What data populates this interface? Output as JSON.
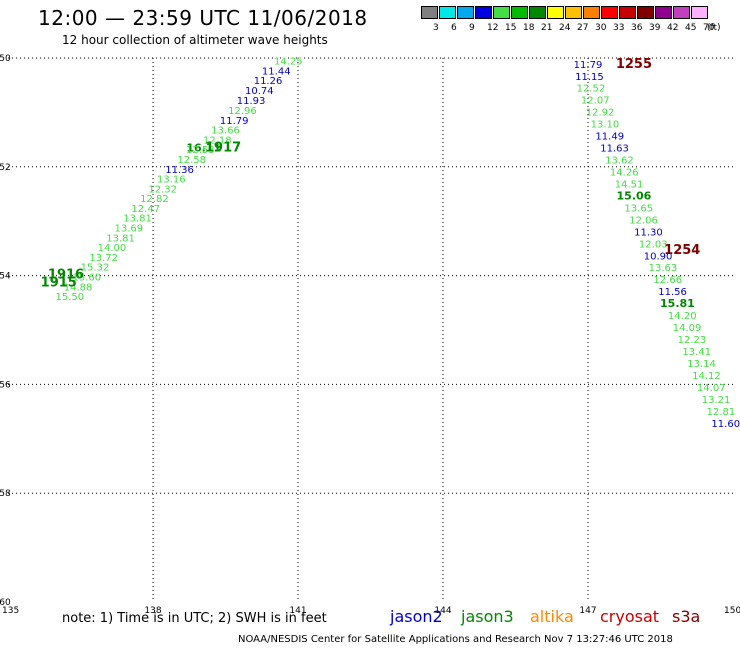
{
  "header": {
    "title": "12:00 — 23:59 UTC 11/06/2018",
    "subtitle": "12 hour collection of altimeter wave heights"
  },
  "colorbar": {
    "unit": "(ft)",
    "bins": [
      {
        "label": "3",
        "color": "#808080"
      },
      {
        "label": "6",
        "color": "#00e8e8"
      },
      {
        "label": "9",
        "color": "#00a8f0"
      },
      {
        "label": "12",
        "color": "#0000e0"
      },
      {
        "label": "15",
        "color": "#44dd44"
      },
      {
        "label": "18",
        "color": "#00bb00"
      },
      {
        "label": "21",
        "color": "#008800"
      },
      {
        "label": "24",
        "color": "#ffff00"
      },
      {
        "label": "27",
        "color": "#ffc000"
      },
      {
        "label": "30",
        "color": "#ff8000"
      },
      {
        "label": "33",
        "color": "#ff0000"
      },
      {
        "label": "36",
        "color": "#c80000"
      },
      {
        "label": "39",
        "color": "#800000"
      },
      {
        "label": "42",
        "color": "#900090"
      },
      {
        "label": "45",
        "color": "#c040c0"
      },
      {
        "label": "70",
        "color": "#ffb0ff"
      }
    ]
  },
  "footer": {
    "note": "note: 1) Time is in UTC; 2) SWH is in feet",
    "satellites": [
      {
        "name": "jason2",
        "color": "#0000cc"
      },
      {
        "name": "jason3",
        "color": "#008800"
      },
      {
        "name": "altika",
        "color": "#ff8800"
      },
      {
        "name": "cryosat",
        "color": "#cc0000"
      },
      {
        "name": "s3a",
        "color": "#800000"
      }
    ],
    "credit": "NOAA/NESDIS Center for Satellite Applications and Research    Nov  7 13:27:46 UTC 2018"
  },
  "chart_data": {
    "type": "scatter",
    "xlim": [
      135,
      150
    ],
    "ylim": [
      -60,
      -50
    ],
    "xticks": [
      "135",
      "138",
      "141",
      "144",
      "147",
      "150"
    ],
    "yticks": [
      "-50",
      "-52",
      "-54",
      "-56",
      "-58",
      "-60"
    ],
    "grid": true,
    "colors": {
      "light": "#44dd44",
      "dark": "#008800",
      "blue": "#0000cc",
      "maroon": "#800000"
    },
    "series": [
      {
        "points": [
          {
            "x": 140.8,
            "y": -50.12,
            "v": "14.25",
            "c": "light"
          },
          {
            "x": 140.55,
            "y": -50.3,
            "v": "11.44",
            "c": "blue"
          },
          {
            "x": 140.38,
            "y": -50.48,
            "v": "11.26",
            "c": "blue"
          },
          {
            "x": 140.2,
            "y": -50.66,
            "v": "10.74",
            "c": "blue"
          },
          {
            "x": 140.03,
            "y": -50.85,
            "v": "11.93",
            "c": "blue"
          },
          {
            "x": 139.85,
            "y": -51.03,
            "v": "12.96",
            "c": "light"
          },
          {
            "x": 139.68,
            "y": -51.21,
            "v": "11.79",
            "c": "blue"
          },
          {
            "x": 139.5,
            "y": -51.39,
            "v": "13.66",
            "c": "light"
          },
          {
            "x": 139.33,
            "y": -51.57,
            "v": "12.18",
            "c": "light"
          },
          {
            "x": 139.05,
            "y": -51.72,
            "v": "16.11",
            "c": "dark",
            "bold": true
          },
          {
            "x": 138.98,
            "y": -51.75,
            "v": "12.53",
            "c": "light"
          },
          {
            "x": 138.8,
            "y": -51.93,
            "v": "12.58",
            "c": "light"
          },
          {
            "x": 138.55,
            "y": -52.11,
            "v": "11.36",
            "c": "blue"
          },
          {
            "x": 138.38,
            "y": -52.29,
            "v": "13.16",
            "c": "light"
          },
          {
            "x": 138.2,
            "y": -52.47,
            "v": "12.32",
            "c": "light"
          },
          {
            "x": 138.03,
            "y": -52.65,
            "v": "12.82",
            "c": "light"
          },
          {
            "x": 137.85,
            "y": -52.83,
            "v": "12.47",
            "c": "light"
          },
          {
            "x": 137.68,
            "y": -53.01,
            "v": "13.81",
            "c": "light"
          },
          {
            "x": 137.5,
            "y": -53.19,
            "v": "13.69",
            "c": "light"
          },
          {
            "x": 137.33,
            "y": -53.37,
            "v": "13.81",
            "c": "light"
          },
          {
            "x": 137.15,
            "y": -53.55,
            "v": "14.00",
            "c": "light"
          },
          {
            "x": 136.98,
            "y": -53.73,
            "v": "13.72",
            "c": "light"
          },
          {
            "x": 136.8,
            "y": -53.91,
            "v": "15.32",
            "c": "light"
          },
          {
            "x": 136.63,
            "y": -54.09,
            "v": "15.60",
            "c": "light"
          },
          {
            "x": 136.45,
            "y": -54.27,
            "v": "14.88",
            "c": "light"
          },
          {
            "x": 136.28,
            "y": -54.45,
            "v": "15.50",
            "c": "light"
          }
        ],
        "labels": [
          {
            "x": 139.45,
            "y": -51.72,
            "v": "1917",
            "c": "dark"
          },
          {
            "x": 136.2,
            "y": -54.05,
            "v": "1916",
            "c": "dark"
          },
          {
            "x": 136.05,
            "y": -54.2,
            "v": "1915",
            "c": "dark"
          }
        ]
      },
      {
        "points": [
          {
            "x": 147.0,
            "y": -50.18,
            "v": "11.79",
            "c": "blue"
          },
          {
            "x": 147.03,
            "y": -50.4,
            "v": "11.15",
            "c": "blue"
          },
          {
            "x": 147.06,
            "y": -50.62,
            "v": "12.52",
            "c": "light"
          },
          {
            "x": 147.15,
            "y": -50.84,
            "v": "12.07",
            "c": "light"
          },
          {
            "x": 147.25,
            "y": -51.06,
            "v": "12.92",
            "c": "light"
          },
          {
            "x": 147.35,
            "y": -51.28,
            "v": "13.10",
            "c": "light"
          },
          {
            "x": 147.45,
            "y": -51.5,
            "v": "11.49",
            "c": "blue"
          },
          {
            "x": 147.55,
            "y": -51.72,
            "v": "11.63",
            "c": "blue"
          },
          {
            "x": 147.65,
            "y": -51.94,
            "v": "13.62",
            "c": "light"
          },
          {
            "x": 147.75,
            "y": -52.16,
            "v": "14.26",
            "c": "light"
          },
          {
            "x": 147.85,
            "y": -52.38,
            "v": "14.51",
            "c": "light"
          },
          {
            "x": 147.95,
            "y": -52.6,
            "v": "15.06",
            "c": "dark",
            "bold": true
          },
          {
            "x": 148.05,
            "y": -52.82,
            "v": "13.65",
            "c": "light"
          },
          {
            "x": 148.15,
            "y": -53.04,
            "v": "12.06",
            "c": "light"
          },
          {
            "x": 148.25,
            "y": -53.26,
            "v": "11.30",
            "c": "blue"
          },
          {
            "x": 148.35,
            "y": -53.48,
            "v": "12.03",
            "c": "light"
          },
          {
            "x": 148.45,
            "y": -53.7,
            "v": "10.90",
            "c": "blue"
          },
          {
            "x": 148.55,
            "y": -53.92,
            "v": "13.63",
            "c": "light"
          },
          {
            "x": 148.65,
            "y": -54.14,
            "v": "12.66",
            "c": "light"
          },
          {
            "x": 148.75,
            "y": -54.36,
            "v": "11.56",
            "c": "blue"
          },
          {
            "x": 148.85,
            "y": -54.58,
            "v": "15.81",
            "c": "dark",
            "bold": true
          },
          {
            "x": 148.95,
            "y": -54.8,
            "v": "14.20",
            "c": "light"
          },
          {
            "x": 149.05,
            "y": -55.02,
            "v": "14.09",
            "c": "light"
          },
          {
            "x": 149.15,
            "y": -55.24,
            "v": "12.23",
            "c": "light"
          },
          {
            "x": 149.25,
            "y": -55.46,
            "v": "13.41",
            "c": "light"
          },
          {
            "x": 149.35,
            "y": -55.68,
            "v": "13.14",
            "c": "light"
          },
          {
            "x": 149.45,
            "y": -55.9,
            "v": "14.12",
            "c": "light"
          },
          {
            "x": 149.55,
            "y": -56.12,
            "v": "14.07",
            "c": "light"
          },
          {
            "x": 149.65,
            "y": -56.34,
            "v": "13.21",
            "c": "light"
          },
          {
            "x": 149.75,
            "y": -56.56,
            "v": "12.81",
            "c": "light"
          },
          {
            "x": 149.85,
            "y": -56.78,
            "v": "11.60",
            "c": "blue"
          }
        ],
        "labels": [
          {
            "x": 147.95,
            "y": -50.18,
            "v": "1255",
            "c": "maroon"
          },
          {
            "x": 148.95,
            "y": -53.6,
            "v": "1254",
            "c": "maroon"
          }
        ]
      }
    ]
  }
}
